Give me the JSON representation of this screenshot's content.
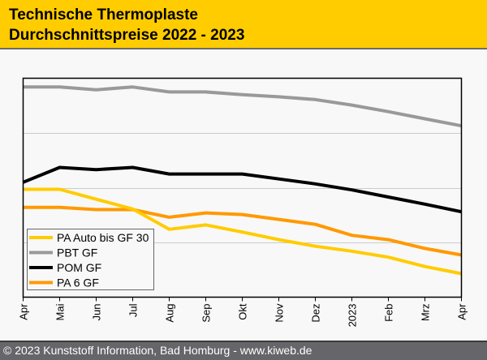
{
  "header": {
    "title_line1": "Technische Thermoplaste",
    "title_line2": "Durchschnittspreise 2022 - 2023"
  },
  "footer": {
    "text": "© 2023 Kunststoff Information, Bad Homburg - www.kiweb.de"
  },
  "colors": {
    "header_bg": "#ffcc00",
    "footer_bg": "#66666a"
  },
  "chart_data": {
    "type": "line",
    "title": "Technische Thermoplaste Durchschnittspreise 2022 - 2023",
    "xlabel": "",
    "ylabel": "",
    "x": [
      "Apr",
      "Mai",
      "Jun",
      "Jul",
      "Aug",
      "Sep",
      "Okt",
      "Nov",
      "Dez",
      "2023",
      "Feb",
      "Mrz",
      "Apr"
    ],
    "ylim": [
      0,
      4
    ],
    "y_ticks_labeled": false,
    "grid": true,
    "legend_position": "bottom-left",
    "series": [
      {
        "name": "PA Auto bis GF 30",
        "color": "#ffcc00",
        "values": [
          1.97,
          1.97,
          1.79,
          1.61,
          1.24,
          1.32,
          1.19,
          1.05,
          0.93,
          0.84,
          0.73,
          0.56,
          0.43
        ]
      },
      {
        "name": "PBT GF",
        "color": "#999999",
        "values": [
          3.84,
          3.84,
          3.79,
          3.84,
          3.75,
          3.75,
          3.7,
          3.66,
          3.61,
          3.51,
          3.39,
          3.26,
          3.13
        ]
      },
      {
        "name": "POM GF",
        "color": "#000000",
        "values": [
          2.1,
          2.37,
          2.33,
          2.37,
          2.25,
          2.25,
          2.25,
          2.16,
          2.07,
          1.96,
          1.83,
          1.7,
          1.56
        ]
      },
      {
        "name": "PA 6 GF",
        "color": "#ff9900",
        "values": [
          1.64,
          1.64,
          1.6,
          1.6,
          1.46,
          1.54,
          1.51,
          1.42,
          1.33,
          1.13,
          1.05,
          0.89,
          0.77
        ]
      }
    ]
  }
}
